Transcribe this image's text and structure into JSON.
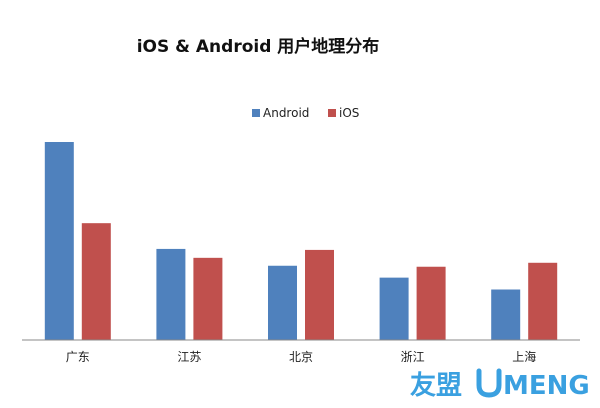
{
  "chart_data": {
    "type": "bar",
    "title": "iOS & Android 用户地理分布",
    "categories": [
      "广东",
      "江苏",
      "北京",
      "浙江",
      "上海"
    ],
    "series": [
      {
        "name": "Android",
        "color": "#4f81bd",
        "values": [
          100,
          46,
          37.5,
          31.5,
          25.5
        ]
      },
      {
        "name": "iOS",
        "color": "#c0504d",
        "values": [
          59,
          41.5,
          45.5,
          37,
          39
        ]
      }
    ],
    "legend_position": "top-center",
    "grid": false,
    "xlabel": "",
    "ylabel": "",
    "ylim": [
      0,
      100
    ]
  },
  "watermark": {
    "brand_cn": "友盟",
    "brand_en": "MENG",
    "color": "#3aa0e0"
  }
}
